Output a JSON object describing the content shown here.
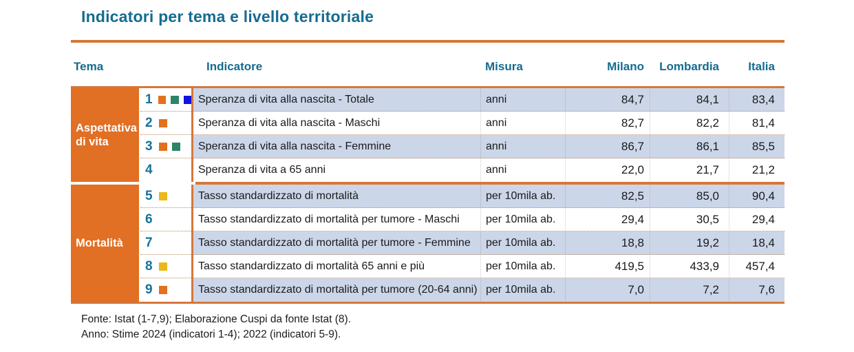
{
  "title": "Indicatori per tema e livello territoriale",
  "header": {
    "tema": "Tema",
    "indicatore": "Indicatore",
    "misura": "Misura",
    "milano": "Milano",
    "lombardia": "Lombardia",
    "italia": "Italia"
  },
  "colors": {
    "accent_orange": "#d5773a",
    "theme_cell_orange": "#e16f24",
    "header_teal": "#156b90",
    "row_highlight_blue": "#ccd6e9",
    "square_orange": "#e2711d",
    "square_green": "#2e8566",
    "square_blue": "#1212d9",
    "square_yellow": "#eab818"
  },
  "sections": [
    {
      "theme": "Aspettativa di vita",
      "rows": [
        {
          "num": "1",
          "squares": [
            "square_orange",
            "square_green",
            "square_blue"
          ],
          "indicator": "Speranza di vita alla nascita - Totale",
          "misura": "anni",
          "milano": "84,7",
          "lombardia": "84,1",
          "italia": "83,4"
        },
        {
          "num": "2",
          "squares": [
            "square_orange"
          ],
          "indicator": "Speranza di vita alla nascita - Maschi",
          "misura": "anni",
          "milano": "82,7",
          "lombardia": "82,2",
          "italia": "81,4"
        },
        {
          "num": "3",
          "squares": [
            "square_orange",
            "square_green"
          ],
          "indicator": "Speranza di vita alla nascita - Femmine",
          "misura": "anni",
          "milano": "86,7",
          "lombardia": "86,1",
          "italia": "85,5"
        },
        {
          "num": "4",
          "squares": [],
          "indicator": "Speranza di vita a 65 anni",
          "misura": "anni",
          "milano": "22,0",
          "lombardia": "21,7",
          "italia": "21,2"
        }
      ]
    },
    {
      "theme": "Mortalità",
      "rows": [
        {
          "num": "5",
          "squares": [
            "square_yellow"
          ],
          "indicator": "Tasso standardizzato di mortalità",
          "misura": "per 10mila ab.",
          "milano": "82,5",
          "lombardia": "85,0",
          "italia": "90,4"
        },
        {
          "num": "6",
          "squares": [],
          "indicator": "Tasso standardizzato di mortalità per tumore - Maschi",
          "misura": "per 10mila ab.",
          "milano": "29,4",
          "lombardia": "30,5",
          "italia": "29,4"
        },
        {
          "num": "7",
          "squares": [],
          "indicator": "Tasso standardizzato di mortalità per tumore - Femmine",
          "misura": "per 10mila ab.",
          "milano": "18,8",
          "lombardia": "19,2",
          "italia": "18,4"
        },
        {
          "num": "8",
          "squares": [
            "square_yellow"
          ],
          "indicator": "Tasso standardizzato di mortalità 65 anni e più",
          "misura": "per 10mila ab.",
          "milano": "419,5",
          "lombardia": "433,9",
          "italia": "457,4"
        },
        {
          "num": "9",
          "squares": [
            "square_orange"
          ],
          "indicator": "Tasso standardizzato di mortalità per tumore (20-64 anni)",
          "misura": "per 10mila ab.",
          "milano": "7,0",
          "lombardia": "7,2",
          "italia": "7,6"
        }
      ]
    }
  ],
  "footer": {
    "fonte": "Fonte: Istat (1-7,9); Elaborazione Cuspi da fonte Istat (8).",
    "anno": "Anno: Stime 2024 (indicatori 1-4); 2022 (indicatori 5-9)."
  }
}
